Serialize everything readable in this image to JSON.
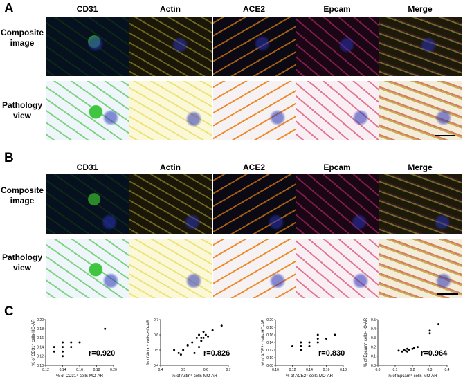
{
  "panels": {
    "A": {
      "letter": "A",
      "columns": [
        "CD31",
        "Actin",
        "ACE2",
        "Epcam",
        "Merge"
      ],
      "rows": [
        {
          "line1": "Composite",
          "line2": "image"
        },
        {
          "line1": "Pathology",
          "line2": "view"
        }
      ]
    },
    "B": {
      "letter": "B",
      "columns": [
        "CD31",
        "Actin",
        "ACE2",
        "Epcam",
        "Merge"
      ],
      "rows": [
        {
          "line1": "Composite",
          "line2": "image"
        },
        {
          "line1": "Pathology",
          "line2": "view"
        }
      ]
    },
    "C": {
      "letter": "C"
    }
  },
  "chart_data": [
    {
      "type": "scatter",
      "xlabel": "% of CD31⁺ cells-MO-AR",
      "ylabel": "% of CD31⁺ cells-HO-AR",
      "xlim": [
        0.12,
        0.2
      ],
      "ylim": [
        0.1,
        0.2
      ],
      "xticks": [
        "0.12",
        "0.14",
        "0.16",
        "0.18",
        "0.20"
      ],
      "yticks": [
        "0.10",
        "0.12",
        "0.14",
        "0.16",
        "0.18",
        "0.20"
      ],
      "annotation": "r=0.920",
      "points": [
        [
          0.13,
          0.14
        ],
        [
          0.13,
          0.13
        ],
        [
          0.14,
          0.15
        ],
        [
          0.14,
          0.14
        ],
        [
          0.14,
          0.13
        ],
        [
          0.14,
          0.12
        ],
        [
          0.15,
          0.15
        ],
        [
          0.15,
          0.14
        ],
        [
          0.16,
          0.15
        ],
        [
          0.19,
          0.18
        ]
      ]
    },
    {
      "type": "scatter",
      "xlabel": "% of Actin⁺ cells-MO-AR",
      "ylabel": "% of Actin⁺ cells-HO-AR",
      "xlim": [
        0.4,
        0.7
      ],
      "ylim": [
        0.4,
        0.7
      ],
      "xticks": [
        "0.4",
        "0.5",
        "0.6",
        "0.7"
      ],
      "yticks": [
        "0.4",
        "0.5",
        "0.6",
        "0.7"
      ],
      "annotation": "r=0.826",
      "points": [
        [
          0.46,
          0.5
        ],
        [
          0.48,
          0.48
        ],
        [
          0.49,
          0.47
        ],
        [
          0.5,
          0.5
        ],
        [
          0.52,
          0.53
        ],
        [
          0.54,
          0.55
        ],
        [
          0.55,
          0.48
        ],
        [
          0.56,
          0.58
        ],
        [
          0.57,
          0.52
        ],
        [
          0.57,
          0.6
        ],
        [
          0.58,
          0.56
        ],
        [
          0.58,
          0.58
        ],
        [
          0.59,
          0.58
        ],
        [
          0.59,
          0.62
        ],
        [
          0.6,
          0.6
        ],
        [
          0.61,
          0.59
        ],
        [
          0.63,
          0.63
        ],
        [
          0.67,
          0.66
        ]
      ]
    },
    {
      "type": "scatter",
      "xlabel": "% of ACE2⁺ cells-MO-AR",
      "ylabel": "% of ACE2⁺ cells-HO-AR",
      "xlim": [
        0.1,
        0.18
      ],
      "ylim": [
        0.08,
        0.2
      ],
      "xticks": [
        "0.10",
        "0.12",
        "0.14",
        "0.16",
        "0.18"
      ],
      "yticks": [
        "0.08",
        "0.10",
        "0.12",
        "0.14",
        "0.16",
        "0.18",
        "0.20"
      ],
      "annotation": "r=0.830",
      "points": [
        [
          0.12,
          0.13
        ],
        [
          0.13,
          0.14
        ],
        [
          0.13,
          0.12
        ],
        [
          0.13,
          0.13
        ],
        [
          0.14,
          0.14
        ],
        [
          0.14,
          0.13
        ],
        [
          0.15,
          0.16
        ],
        [
          0.15,
          0.15
        ],
        [
          0.15,
          0.14
        ],
        [
          0.16,
          0.15
        ],
        [
          0.17,
          0.16
        ]
      ]
    },
    {
      "type": "scatter",
      "xlabel": "% of Epcam⁺ cells-MO-AR",
      "ylabel": "% of Epcam⁺ cells-HO-AR",
      "xlim": [
        0.0,
        0.4
      ],
      "ylim": [
        0.0,
        0.5
      ],
      "xticks": [
        "0.0",
        "0.1",
        "0.2",
        "0.3",
        "0.4"
      ],
      "yticks": [
        "0.0",
        "0.1",
        "0.2",
        "0.3",
        "0.4",
        "0.5"
      ],
      "annotation": "r=0.964",
      "points": [
        [
          0.12,
          0.16
        ],
        [
          0.14,
          0.15
        ],
        [
          0.15,
          0.17
        ],
        [
          0.16,
          0.16
        ],
        [
          0.17,
          0.15
        ],
        [
          0.17,
          0.18
        ],
        [
          0.18,
          0.17
        ],
        [
          0.2,
          0.18
        ],
        [
          0.21,
          0.19
        ],
        [
          0.23,
          0.2
        ],
        [
          0.3,
          0.35
        ],
        [
          0.3,
          0.38
        ],
        [
          0.35,
          0.45
        ]
      ]
    }
  ]
}
